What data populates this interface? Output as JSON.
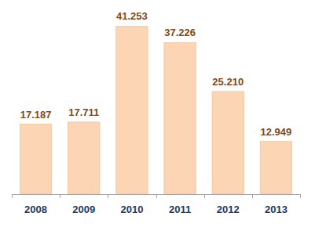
{
  "chart_data": {
    "type": "bar",
    "categories": [
      "2008",
      "2009",
      "2010",
      "2011",
      "2012",
      "2013"
    ],
    "values": [
      17187,
      17711,
      41253,
      37226,
      25210,
      12949
    ],
    "value_labels": [
      "17.187",
      "17.711",
      "41.253",
      "37.226",
      "25.210",
      "12.949"
    ],
    "color": "#fcd5b5",
    "ylim": [
      0,
      45000
    ],
    "data_labels": true,
    "tick_labels": "x"
  }
}
